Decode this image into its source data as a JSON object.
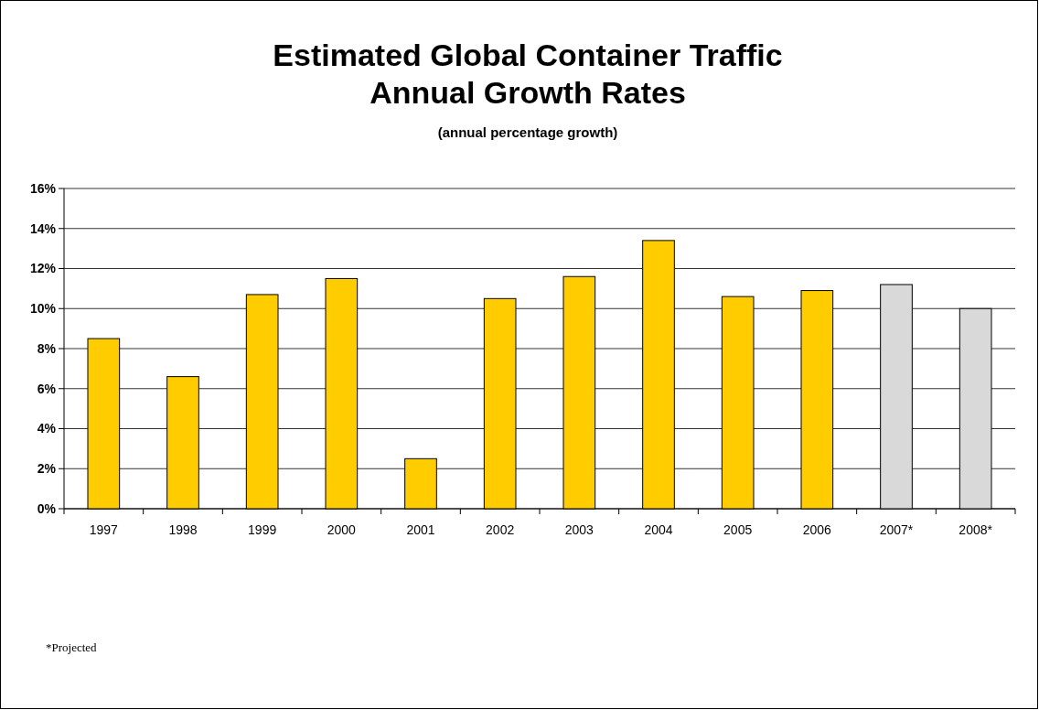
{
  "chart_data": {
    "type": "bar",
    "title": "Estimated Global Container Traffic\nAnnual Growth Rates",
    "subtitle": "(annual percentage growth)",
    "categories": [
      "1997",
      "1998",
      "1999",
      "2000",
      "2001",
      "2002",
      "2003",
      "2004",
      "2005",
      "2006",
      "2007*",
      "2008*"
    ],
    "values": [
      8.5,
      6.6,
      10.7,
      11.5,
      2.5,
      10.5,
      11.6,
      13.4,
      10.6,
      10.9,
      11.2,
      10.0
    ],
    "colors": [
      "#ffcc00",
      "#ffcc00",
      "#ffcc00",
      "#ffcc00",
      "#ffcc00",
      "#ffcc00",
      "#ffcc00",
      "#ffcc00",
      "#ffcc00",
      "#ffcc00",
      "#d9d9d9",
      "#d9d9d9"
    ],
    "ylim": [
      0,
      16
    ],
    "yticks": [
      {
        "value": 0,
        "label": "0%"
      },
      {
        "value": 2,
        "label": "2%"
      },
      {
        "value": 4,
        "label": "4%"
      },
      {
        "value": 6,
        "label": "6%"
      },
      {
        "value": 8,
        "label": "8%"
      },
      {
        "value": 10,
        "label": "10%"
      },
      {
        "value": 12,
        "label": "12%"
      },
      {
        "value": 14,
        "label": "14%"
      },
      {
        "value": 16,
        "label": "16%"
      }
    ],
    "grid": true,
    "annotations": [
      "*Projected"
    ]
  }
}
